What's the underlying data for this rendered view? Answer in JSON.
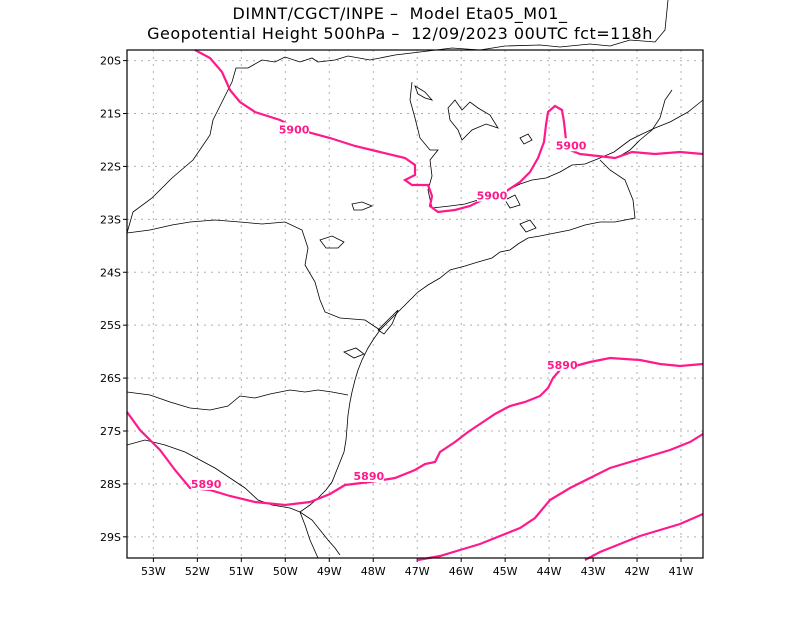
{
  "title_line1": "DIMNT/CGCT/INPE –  Model Eta05_M01_",
  "title_line2": "Geopotential Height 500hPa –  12/09/2023 00UTC fct=118h",
  "colors": {
    "contour": "#ff1a8c",
    "grid": "#b0b0b0",
    "border": "#000000",
    "coast": "#000000"
  },
  "map": {
    "lon_range": [
      -53.6,
      -40.5
    ],
    "lat_range": [
      -29.4,
      -19.8
    ],
    "grid_dotted": true,
    "lat_ticks": [
      "20S",
      "21S",
      "22S",
      "23S",
      "24S",
      "25S",
      "26S",
      "27S",
      "28S",
      "29S"
    ],
    "lon_ticks": [
      "53W",
      "52W",
      "51W",
      "50W",
      "49W",
      "48W",
      "47W",
      "46W",
      "45W",
      "44W",
      "43W",
      "42W",
      "41W"
    ]
  },
  "contour_labels": [
    {
      "text": "5900",
      "lon": -49.8,
      "lat": -21.3
    },
    {
      "text": "5900",
      "lon": -45.3,
      "lat": -22.55
    },
    {
      "text": "5900",
      "lon": -43.5,
      "lat": -21.6
    },
    {
      "text": "5890",
      "lon": -43.7,
      "lat": -25.75
    },
    {
      "text": "5890",
      "lon": -48.1,
      "lat": -27.85
    },
    {
      "text": "5890",
      "lon": -51.8,
      "lat": -28.0
    }
  ]
}
